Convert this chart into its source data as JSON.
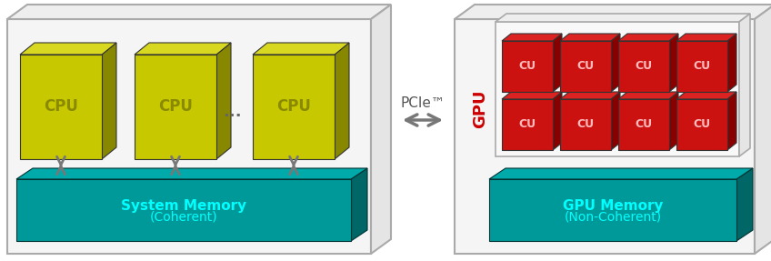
{
  "fig_width": 8.48,
  "fig_height": 2.87,
  "dpi": 100,
  "bg_color": "#ffffff",
  "cpu_face": "#c8c800",
  "cpu_top": "#d8d820",
  "cpu_side": "#888800",
  "cpu_label": "CPU",
  "cpu_label_color": "#8a8a00",
  "cu_face": "#cc1111",
  "cu_top": "#dd2222",
  "cu_side": "#880000",
  "cu_label": "CU",
  "cu_label_color": "#ffbbbb",
  "mem_face": "#009999",
  "mem_top": "#00aaaa",
  "mem_side": "#006666",
  "mem_label_color": "#00ffff",
  "mem_cpu_label1": "System Memory",
  "mem_cpu_label2": "(Coherent)",
  "mem_gpu_label1": "GPU Memory",
  "mem_gpu_label2": "(Non-Coherent)",
  "pcie_label": "PCIe™",
  "gpu_label": "GPU",
  "box_color": "#aaaaaa",
  "arrow_color": "#777777",
  "dots_color": "#666666",
  "inner_box_color": "#aaaaaa"
}
